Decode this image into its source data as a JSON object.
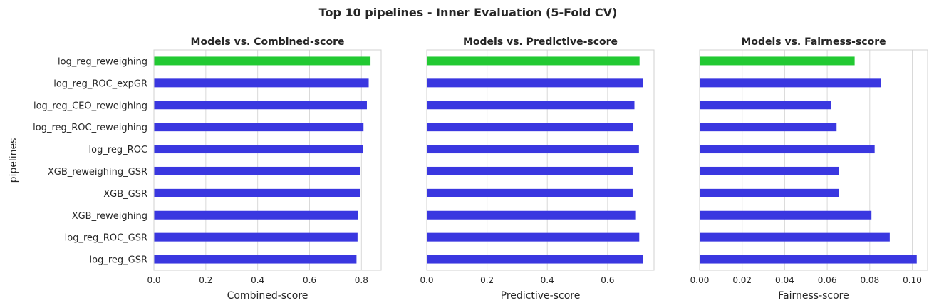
{
  "figure": {
    "title": "Top 10 pipelines - Inner Evaluation (5-Fold CV)",
    "ylabel": "pipelines"
  },
  "colors": {
    "highlight": "#22c932",
    "default": "#3a37e0"
  },
  "chart_data": [
    {
      "type": "bar",
      "orientation": "horizontal",
      "title": "Models vs. Combined-score",
      "xlabel": "Combined-score",
      "ylabel": "pipelines",
      "categories": [
        "log_reg_reweighing",
        "log_reg_ROC_expGR",
        "log_reg_CEO_reweighing",
        "log_reg_ROC_reweighing",
        "log_reg_ROC",
        "XGB_reweighing_GSR",
        "XGB_GSR",
        "XGB_reweighing",
        "log_reg_ROC_GSR",
        "log_reg_GSR"
      ],
      "values": [
        0.835,
        0.828,
        0.821,
        0.808,
        0.806,
        0.795,
        0.795,
        0.787,
        0.785,
        0.781
      ],
      "highlight_index": 0,
      "xlim": [
        0,
        0.876
      ],
      "xticks": [
        0.0,
        0.2,
        0.4,
        0.6,
        0.8
      ],
      "xtick_labels": [
        "0.0",
        "0.2",
        "0.4",
        "0.6",
        "0.8"
      ],
      "grid": "vertical"
    },
    {
      "type": "bar",
      "orientation": "horizontal",
      "title": "Models vs. Predictive-score",
      "xlabel": "Predictive-score",
      "ylabel": "",
      "categories": [
        "log_reg_reweighing",
        "log_reg_ROC_expGR",
        "log_reg_CEO_reweighing",
        "log_reg_ROC_reweighing",
        "log_reg_ROC",
        "XGB_reweighing_GSR",
        "XGB_GSR",
        "XGB_reweighing",
        "log_reg_ROC_GSR",
        "log_reg_GSR"
      ],
      "values": [
        0.706,
        0.718,
        0.689,
        0.685,
        0.704,
        0.683,
        0.683,
        0.694,
        0.705,
        0.718
      ],
      "highlight_index": 0,
      "xlim": [
        0,
        0.754
      ],
      "xticks": [
        0.0,
        0.2,
        0.4,
        0.6
      ],
      "xtick_labels": [
        "0.0",
        "0.2",
        "0.4",
        "0.6"
      ],
      "grid": "vertical"
    },
    {
      "type": "bar",
      "orientation": "horizontal",
      "title": "Models vs. Fairness-score",
      "xlabel": "Fairness-score",
      "ylabel": "",
      "categories": [
        "log_reg_reweighing",
        "log_reg_ROC_expGR",
        "log_reg_CEO_reweighing",
        "log_reg_ROC_reweighing",
        "log_reg_ROC",
        "XGB_reweighing_GSR",
        "XGB_GSR",
        "XGB_reweighing",
        "log_reg_ROC_GSR",
        "log_reg_GSR"
      ],
      "values": [
        0.0729,
        0.0851,
        0.0617,
        0.0644,
        0.0823,
        0.0656,
        0.0656,
        0.0808,
        0.0894,
        0.1021
      ],
      "highlight_index": 0,
      "xlim": [
        0,
        0.1072
      ],
      "xticks": [
        0.0,
        0.02,
        0.04,
        0.06,
        0.08,
        0.1
      ],
      "xtick_labels": [
        "0.00",
        "0.02",
        "0.04",
        "0.06",
        "0.08",
        "0.10"
      ],
      "grid": "vertical"
    }
  ]
}
